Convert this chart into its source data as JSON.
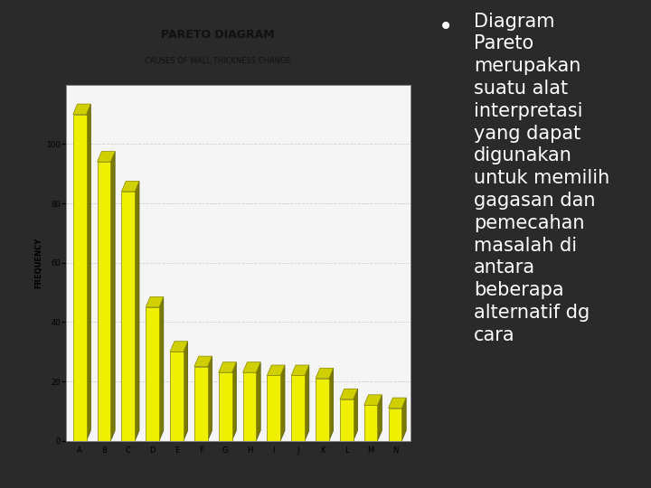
{
  "title": "PARETO DIAGRAM",
  "subtitle": "CAUSES OF WALL THICKNESS CHANGE",
  "categories": [
    "A",
    "B",
    "C",
    "D",
    "E",
    "F",
    "G",
    "H",
    "I",
    "J",
    "K",
    "L",
    "M",
    "N"
  ],
  "values": [
    110,
    94,
    84,
    45,
    30,
    25,
    23,
    23,
    22,
    22,
    21,
    14,
    12,
    11
  ],
  "bar_face_color": "#EFEF00",
  "bar_side_color": "#7a7a00",
  "bar_top_color": "#d0d000",
  "ylabel": "FREQUENCY",
  "ylim": [
    0,
    120
  ],
  "yticks": [
    0,
    20,
    40,
    60,
    80,
    100
  ],
  "bg_color": "#2a2a2a",
  "chart_bg": "#f5f5f5",
  "chart_border": "#888888",
  "grid_color": "#cccccc",
  "title_color": "#111111",
  "title_fontsize": 9,
  "subtitle_fontsize": 6,
  "axis_fontsize": 6,
  "ylabel_fontsize": 6,
  "text_color": "#ffffff",
  "text_fontsize": 15,
  "bullet_fontsize": 20
}
